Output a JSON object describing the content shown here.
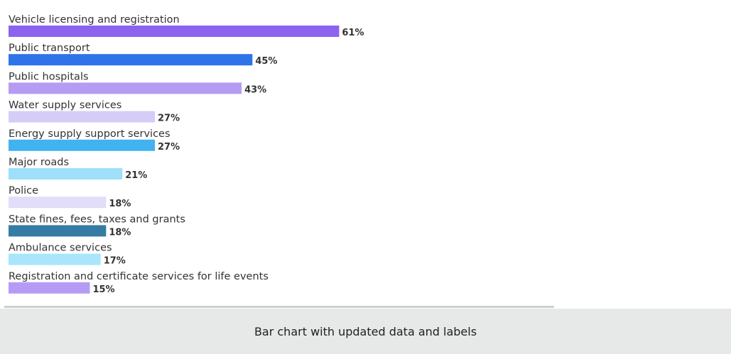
{
  "chart_data": {
    "type": "bar",
    "orientation": "horizontal",
    "categories": [
      "Vehicle licensing and registration",
      "Public transport",
      "Public hospitals",
      "Water supply services",
      "Energy supply support services",
      "Major roads",
      "Police",
      "State fines, fees, taxes and grants",
      "Ambulance services",
      "Registration and certificate services for life events"
    ],
    "values": [
      61,
      45,
      43,
      27,
      27,
      21,
      18,
      18,
      17,
      15
    ],
    "value_labels": [
      "61%",
      "45%",
      "43%",
      "27%",
      "27%",
      "21%",
      "18%",
      "18%",
      "17%",
      "15%"
    ],
    "colors": [
      "#8b63ee",
      "#2f73ea",
      "#b69bf3",
      "#d6ccf8",
      "#42b2f1",
      "#9edff9",
      "#e2ddf9",
      "#367ba3",
      "#a9e6fb",
      "#b49cf5"
    ],
    "xlim": [
      0,
      100
    ],
    "grid": false,
    "legend": "none"
  },
  "caption": "Bar chart with updated data and labels"
}
